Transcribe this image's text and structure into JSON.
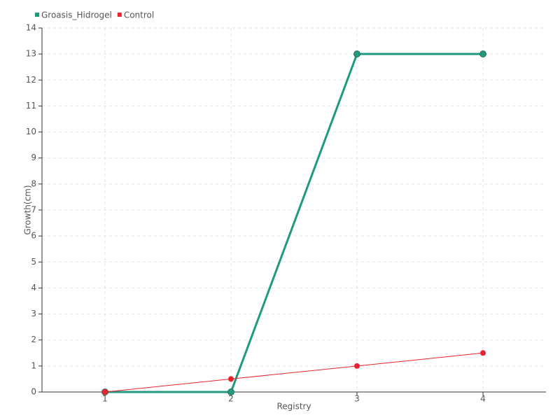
{
  "chart_data": {
    "type": "line",
    "x_label": "Registry",
    "y_label": "Growth(cm)",
    "categories": [
      "1",
      "2",
      "3",
      "4"
    ],
    "series": [
      {
        "name": "Groasis_Hidrogel",
        "color": "#1f9a7e",
        "values": [
          0,
          0,
          13,
          13
        ]
      },
      {
        "name": "Control",
        "color": "#e8242f",
        "values": [
          0,
          0.5,
          1,
          1.5
        ]
      }
    ],
    "ylim": [
      0,
      14
    ],
    "yticks": [
      0,
      1,
      2,
      3,
      4,
      5,
      6,
      7,
      8,
      9,
      10,
      11,
      12,
      13,
      14
    ],
    "grid": true,
    "legend": "top-left"
  }
}
